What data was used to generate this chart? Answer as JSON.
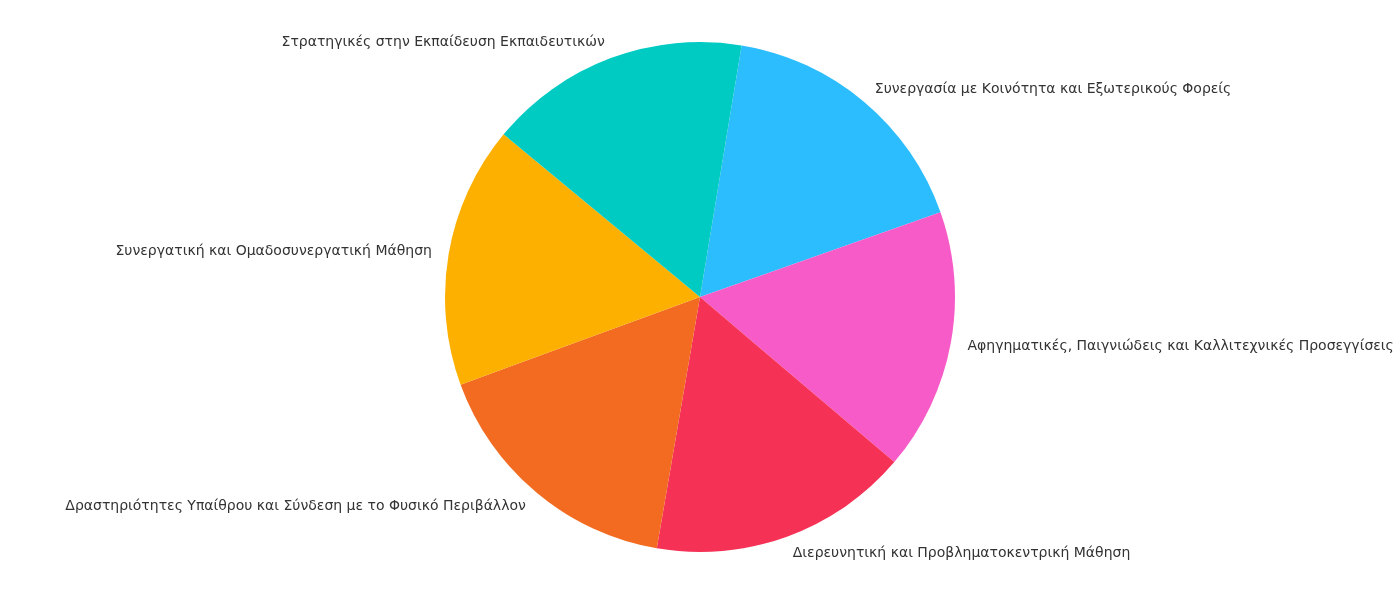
{
  "chart_data": {
    "type": "pie",
    "categories": [
      "Συνεργασία με Κοινότητα και Εξωτερικούς Φορείς",
      "Αφηγηματικές, Παιγνιώδεις και Καλλιτεχνικές Προσεγγίσεις",
      "Διερευνητική και Προβληματοκεντρική Μάθηση",
      "Δραστηριότητες Υπαίθρου και Σύνδεση με το Φυσικό Περιβάλλον",
      "Συνεργατική και Ομαδοσυνεργατική Μάθηση",
      "Στρατηγικές στην Εκπαίδευση Εκπαιδευτικών"
    ],
    "values": [
      17,
      16.6,
      16.5,
      16.7,
      16.6,
      16.6
    ],
    "colors": [
      "#2bbdfd",
      "#f75bc8",
      "#f53256",
      "#f26b21",
      "#fdb000",
      "#00cbc3"
    ]
  }
}
